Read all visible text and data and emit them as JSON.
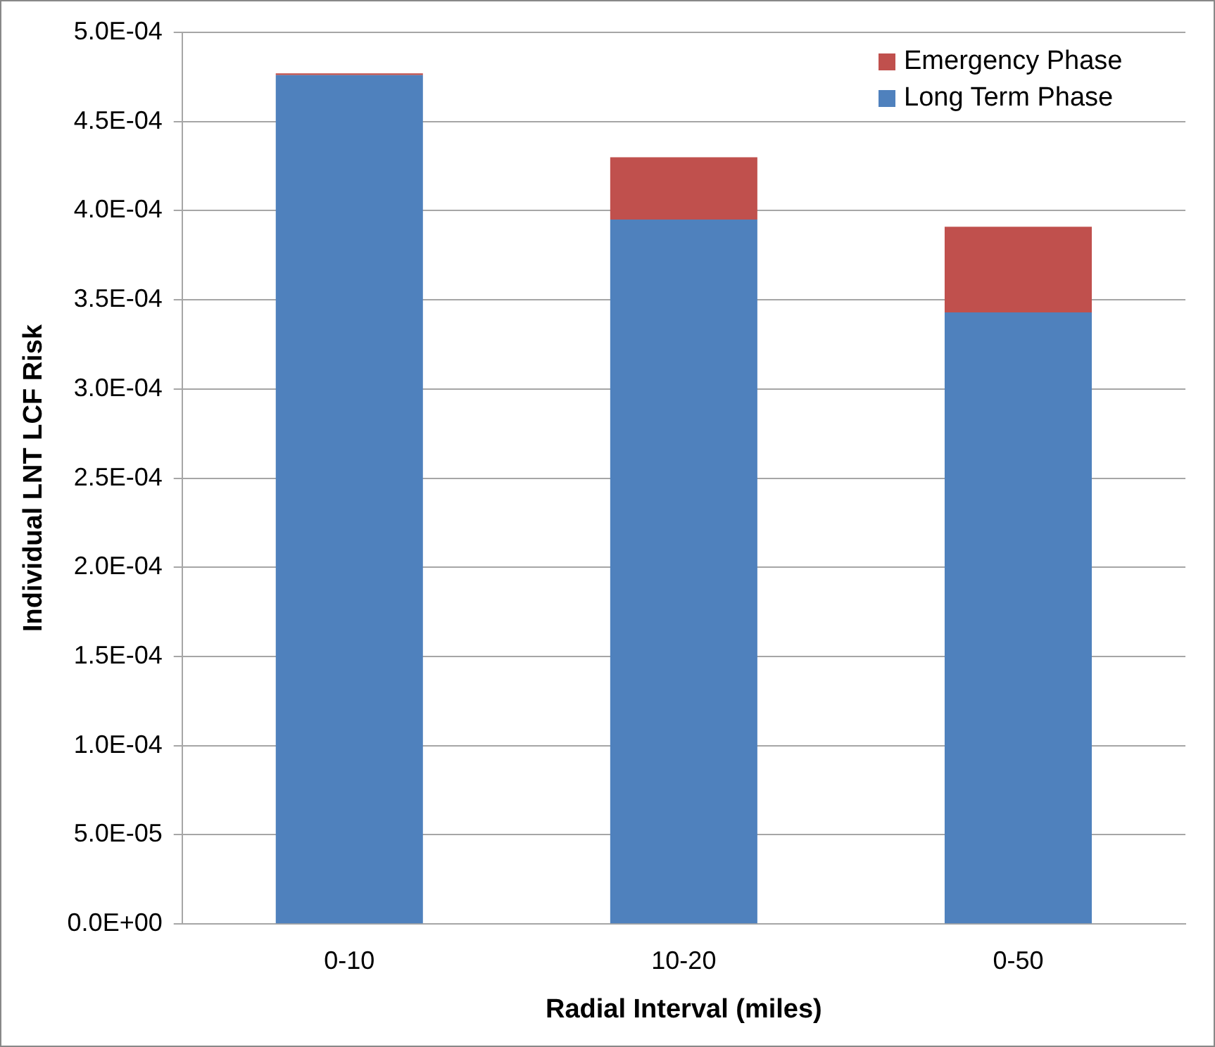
{
  "chart_data": {
    "type": "bar",
    "stacked": true,
    "xlabel": "Radial Interval (miles)",
    "ylabel": "Individual LNT LCF Risk",
    "categories": [
      "0-10",
      "10-20",
      "0-50"
    ],
    "series": [
      {
        "name": "Long Term Phase",
        "color": "#4f81bd",
        "values": [
          0.000476,
          0.000395,
          0.000343
        ]
      },
      {
        "name": "Emergency Phase",
        "color": "#c0504d",
        "values": [
          1e-06,
          3.5e-05,
          4.8e-05
        ]
      }
    ],
    "ylim": [
      0,
      0.0005
    ],
    "yticks": [
      {
        "value": 0,
        "label": "0.0E+00"
      },
      {
        "value": 5e-05,
        "label": "5.0E-05"
      },
      {
        "value": 0.0001,
        "label": "1.0E-04"
      },
      {
        "value": 0.00015,
        "label": "1.5E-04"
      },
      {
        "value": 0.0002,
        "label": "2.0E-04"
      },
      {
        "value": 0.00025,
        "label": "2.5E-04"
      },
      {
        "value": 0.0003,
        "label": "3.0E-04"
      },
      {
        "value": 0.00035,
        "label": "3.5E-04"
      },
      {
        "value": 0.0004,
        "label": "4.0E-04"
      },
      {
        "value": 0.00045,
        "label": "4.5E-04"
      },
      {
        "value": 0.0005,
        "label": "5.0E-04"
      }
    ],
    "grid": "y",
    "legend": "top right"
  }
}
